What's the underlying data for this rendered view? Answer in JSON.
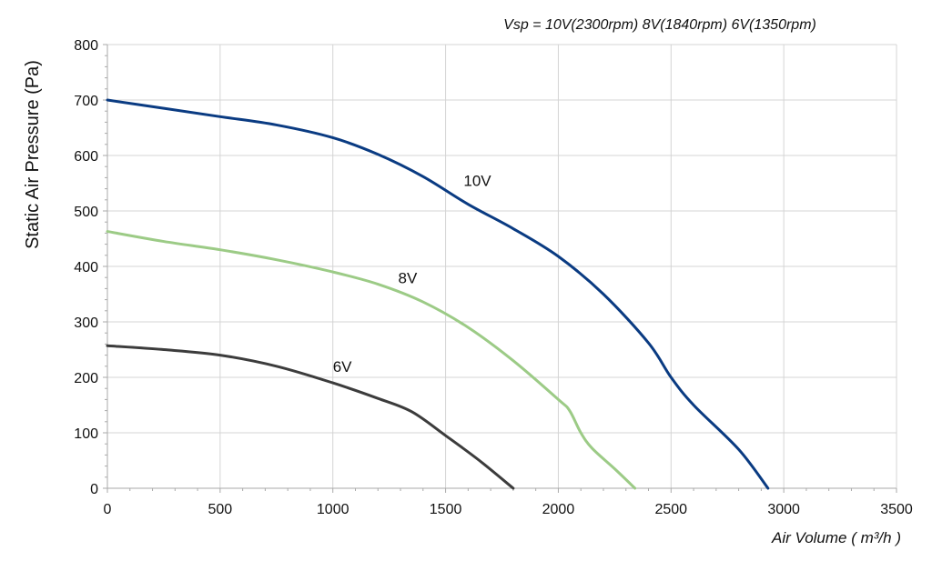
{
  "chart_data": {
    "type": "line",
    "subtitle": "Vsp = 10V(2300rpm)  8V(1840rpm)   6V(1350rpm)",
    "xlabel": "Air Volume ( m³/h )",
    "ylabel": "Static Air Pressure  (Pa)",
    "xlim": [
      0,
      3500
    ],
    "ylim": [
      0,
      800
    ],
    "xticks": [
      0,
      500,
      1000,
      1500,
      2000,
      2500,
      3000,
      3500
    ],
    "yticks": [
      0,
      100,
      200,
      300,
      400,
      500,
      600,
      700,
      800
    ],
    "grid": true,
    "colors": {
      "10V": "#0a3b82",
      "8V": "#9ccb86",
      "6V": "#3c3c3c",
      "grid": "#d4d4d4",
      "axis": "#aaaaaa"
    },
    "series": [
      {
        "name": "10V",
        "label": "10V",
        "label_at": [
          1580,
          545
        ],
        "points": [
          [
            0,
            700
          ],
          [
            250,
            685
          ],
          [
            500,
            670
          ],
          [
            750,
            655
          ],
          [
            1000,
            632
          ],
          [
            1200,
            602
          ],
          [
            1400,
            562
          ],
          [
            1600,
            512
          ],
          [
            1800,
            468
          ],
          [
            2000,
            418
          ],
          [
            2200,
            350
          ],
          [
            2400,
            262
          ],
          [
            2500,
            200
          ],
          [
            2600,
            150
          ],
          [
            2800,
            70
          ],
          [
            2930,
            0
          ]
        ]
      },
      {
        "name": "8V",
        "label": "8V",
        "label_at": [
          1290,
          370
        ],
        "points": [
          [
            0,
            463
          ],
          [
            250,
            445
          ],
          [
            500,
            430
          ],
          [
            750,
            412
          ],
          [
            1000,
            390
          ],
          [
            1200,
            368
          ],
          [
            1400,
            336
          ],
          [
            1600,
            290
          ],
          [
            1800,
            230
          ],
          [
            2000,
            160
          ],
          [
            2050,
            140
          ],
          [
            2100,
            100
          ],
          [
            2150,
            72
          ],
          [
            2250,
            35
          ],
          [
            2340,
            0
          ]
        ]
      },
      {
        "name": "6V",
        "label": "6V",
        "label_at": [
          1000,
          210
        ],
        "points": [
          [
            0,
            257
          ],
          [
            250,
            250
          ],
          [
            500,
            240
          ],
          [
            750,
            220
          ],
          [
            1000,
            190
          ],
          [
            1200,
            162
          ],
          [
            1350,
            138
          ],
          [
            1500,
            95
          ],
          [
            1650,
            50
          ],
          [
            1800,
            0
          ]
        ]
      }
    ]
  }
}
